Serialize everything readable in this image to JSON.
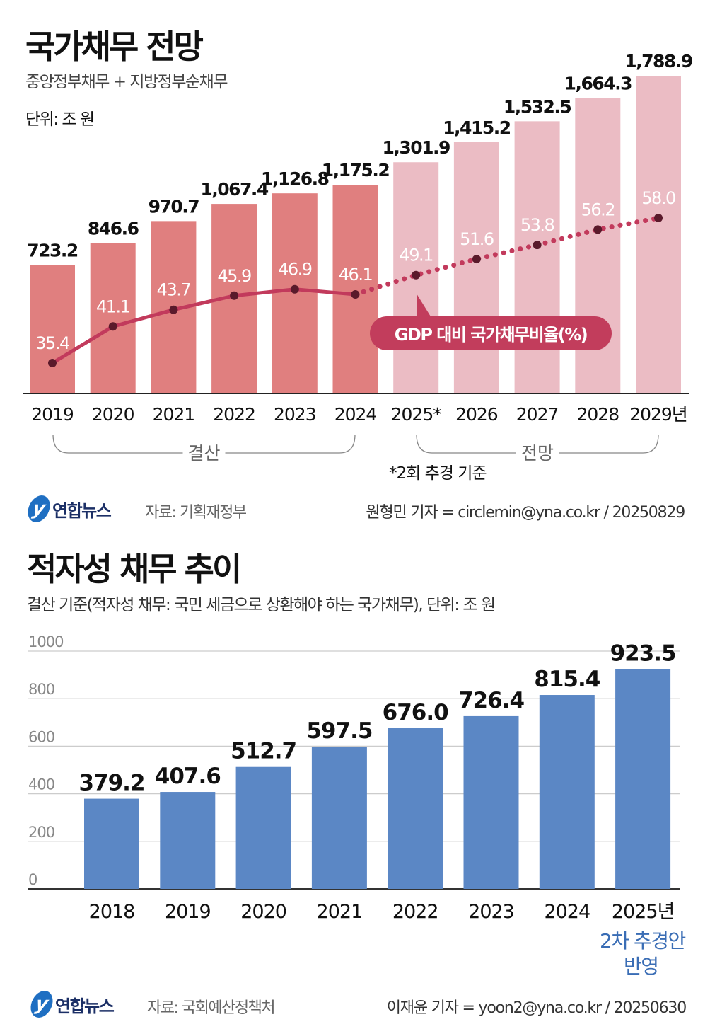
{
  "colors": {
    "actual_bar": "#e07f7f",
    "forecast_bar": "#ebbcc4",
    "ratio_line": "#c23a5c",
    "ratio_dot": "#5a1a2b",
    "badge": "#c23d5c",
    "deficit_bar": "#5b87c5",
    "note_blue": "#3a6db5"
  },
  "section1": {
    "title": "국가채무 전망",
    "subtitle": "중앙정부채무 + 지방정부순채무",
    "unit": "단위: 조 원",
    "footnote": "*2회 추경 기준",
    "group_actual": "결산",
    "group_forecast": "전망",
    "badge": "GDP 대비 국가채무비율(%)",
    "source": "자료: 기획재정부",
    "credit": "원형민 기자 = circlemin@yna.co.kr / 20250829",
    "logo": "연합뉴스"
  },
  "section2": {
    "title": "적자성 채무 추이",
    "subtitle": "결산 기준(적자성 채무: 국민 세금으로 상환해야 하는 국가채무), 단위: 조 원",
    "note_line1": "2차 추경안",
    "note_line2": "반영",
    "source": "자료: 국회예산정책처",
    "credit": "이재윤 기자 = yoon2@yna.co.kr / 20250630",
    "logo": "연합뉴스"
  },
  "chart_data": [
    {
      "type": "bar",
      "title": "국가채무 전망",
      "categories": [
        "2019",
        "2020",
        "2021",
        "2022",
        "2023",
        "2024",
        "2025*",
        "2026",
        "2027",
        "2028",
        "2029년"
      ],
      "series": [
        {
          "values": [
            723.2,
            846.6,
            970.7,
            1067.4,
            1126.8,
            1175.2,
            1301.9,
            1415.2,
            1532.5,
            1664.3,
            1788.9
          ],
          "value_labels": [
            "723.2",
            "846.6",
            "970.7",
            "1,067.4",
            "1,126.8",
            "1,175.2",
            "1,301.9",
            "1,415.2",
            "1,532.5",
            "1,664.3",
            "1,788.9"
          ],
          "kind": [
            "actual",
            "actual",
            "actual",
            "actual",
            "actual",
            "actual",
            "forecast",
            "forecast",
            "forecast",
            "forecast",
            "forecast"
          ]
        },
        {
          "name": "GDP 대비 국가채무비율(%)",
          "type": "line",
          "values": [
            35.4,
            41.1,
            43.7,
            45.9,
            46.9,
            46.1,
            49.1,
            51.6,
            53.8,
            56.2,
            58.0
          ],
          "value_labels": [
            "35.4",
            "41.1",
            "43.7",
            "45.9",
            "46.9",
            "46.1",
            "49.1",
            "51.6",
            "53.8",
            "56.2",
            "58.0"
          ],
          "style": [
            "solid",
            "solid",
            "solid",
            "solid",
            "solid",
            "solid",
            "dotted",
            "dotted",
            "dotted",
            "dotted",
            "dotted"
          ]
        }
      ],
      "ylim": [
        0,
        1788.9
      ],
      "grid": false
    },
    {
      "type": "bar",
      "title": "적자성 채무 추이",
      "categories": [
        "2018",
        "2019",
        "2020",
        "2021",
        "2022",
        "2023",
        "2024",
        "2025년"
      ],
      "values": [
        379.2,
        407.6,
        512.7,
        597.5,
        676.0,
        726.4,
        815.4,
        923.5
      ],
      "value_labels": [
        "379.2",
        "407.6",
        "512.7",
        "597.5",
        "676.0",
        "726.4",
        "815.4",
        "923.5"
      ],
      "yticks": [
        "0",
        "200",
        "400",
        "600",
        "800",
        "1000"
      ],
      "ylim": [
        0,
        1000
      ],
      "grid": true
    }
  ]
}
